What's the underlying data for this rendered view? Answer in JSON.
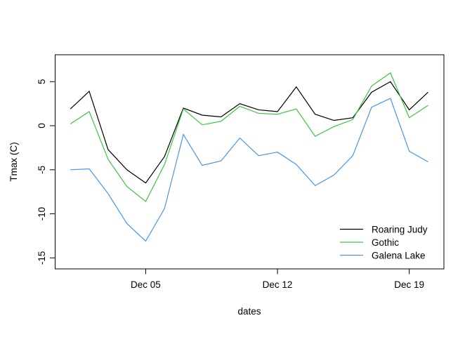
{
  "figure": {
    "background": "#ffffff",
    "axis_color": "#000000",
    "text_color": "#000000"
  },
  "chart_data": {
    "type": "line",
    "title": "",
    "xlabel": "dates",
    "ylabel": "Tmax (C)",
    "grid": false,
    "legend_position": "bottom-right-inside",
    "xlim_days": [
      0.19,
      20.84
    ],
    "ylim": [
      -16.25,
      8.05
    ],
    "x": [
      "Dec 01",
      "Dec 02",
      "Dec 03",
      "Dec 04",
      "Dec 05",
      "Dec 06",
      "Dec 07",
      "Dec 08",
      "Dec 09",
      "Dec 10",
      "Dec 11",
      "Dec 12",
      "Dec 13",
      "Dec 14",
      "Dec 15",
      "Dec 16",
      "Dec 17",
      "Dec 18",
      "Dec 19",
      "Dec 20"
    ],
    "x_ticks": [
      {
        "day": 5,
        "label": "Dec 05"
      },
      {
        "day": 12,
        "label": "Dec 12"
      },
      {
        "day": 19,
        "label": "Dec 19"
      }
    ],
    "y_ticks": [
      {
        "value": 5,
        "label": "5"
      },
      {
        "value": 0,
        "label": "0"
      },
      {
        "value": -5,
        "label": "-5"
      },
      {
        "value": -10,
        "label": "-10"
      },
      {
        "value": -15,
        "label": "-15"
      }
    ],
    "series": [
      {
        "name": "Roaring Judy",
        "color": "#000000",
        "values": [
          1.9,
          3.9,
          -2.7,
          -5.0,
          -6.5,
          -3.5,
          2.0,
          1.2,
          1.0,
          2.5,
          1.8,
          1.6,
          4.4,
          1.3,
          0.6,
          0.9,
          3.8,
          5.0,
          1.8,
          3.8
        ]
      },
      {
        "name": "Gothic",
        "color": "#3ec43e",
        "values": [
          0.2,
          1.6,
          -3.8,
          -6.9,
          -8.6,
          -4.4,
          1.9,
          0.1,
          0.5,
          2.2,
          1.4,
          1.3,
          1.9,
          -1.2,
          -0.1,
          0.7,
          4.5,
          6.0,
          0.9,
          2.3
        ]
      },
      {
        "name": "Galena Lake",
        "color": "#4a94e8",
        "values": [
          -5.0,
          -4.9,
          -7.7,
          -11.1,
          -13.1,
          -9.4,
          -1.0,
          -4.5,
          -4.0,
          -1.4,
          -3.4,
          -3.0,
          -4.4,
          -6.8,
          -5.6,
          -3.4,
          2.1,
          3.1,
          -2.9,
          -4.1
        ]
      }
    ]
  }
}
